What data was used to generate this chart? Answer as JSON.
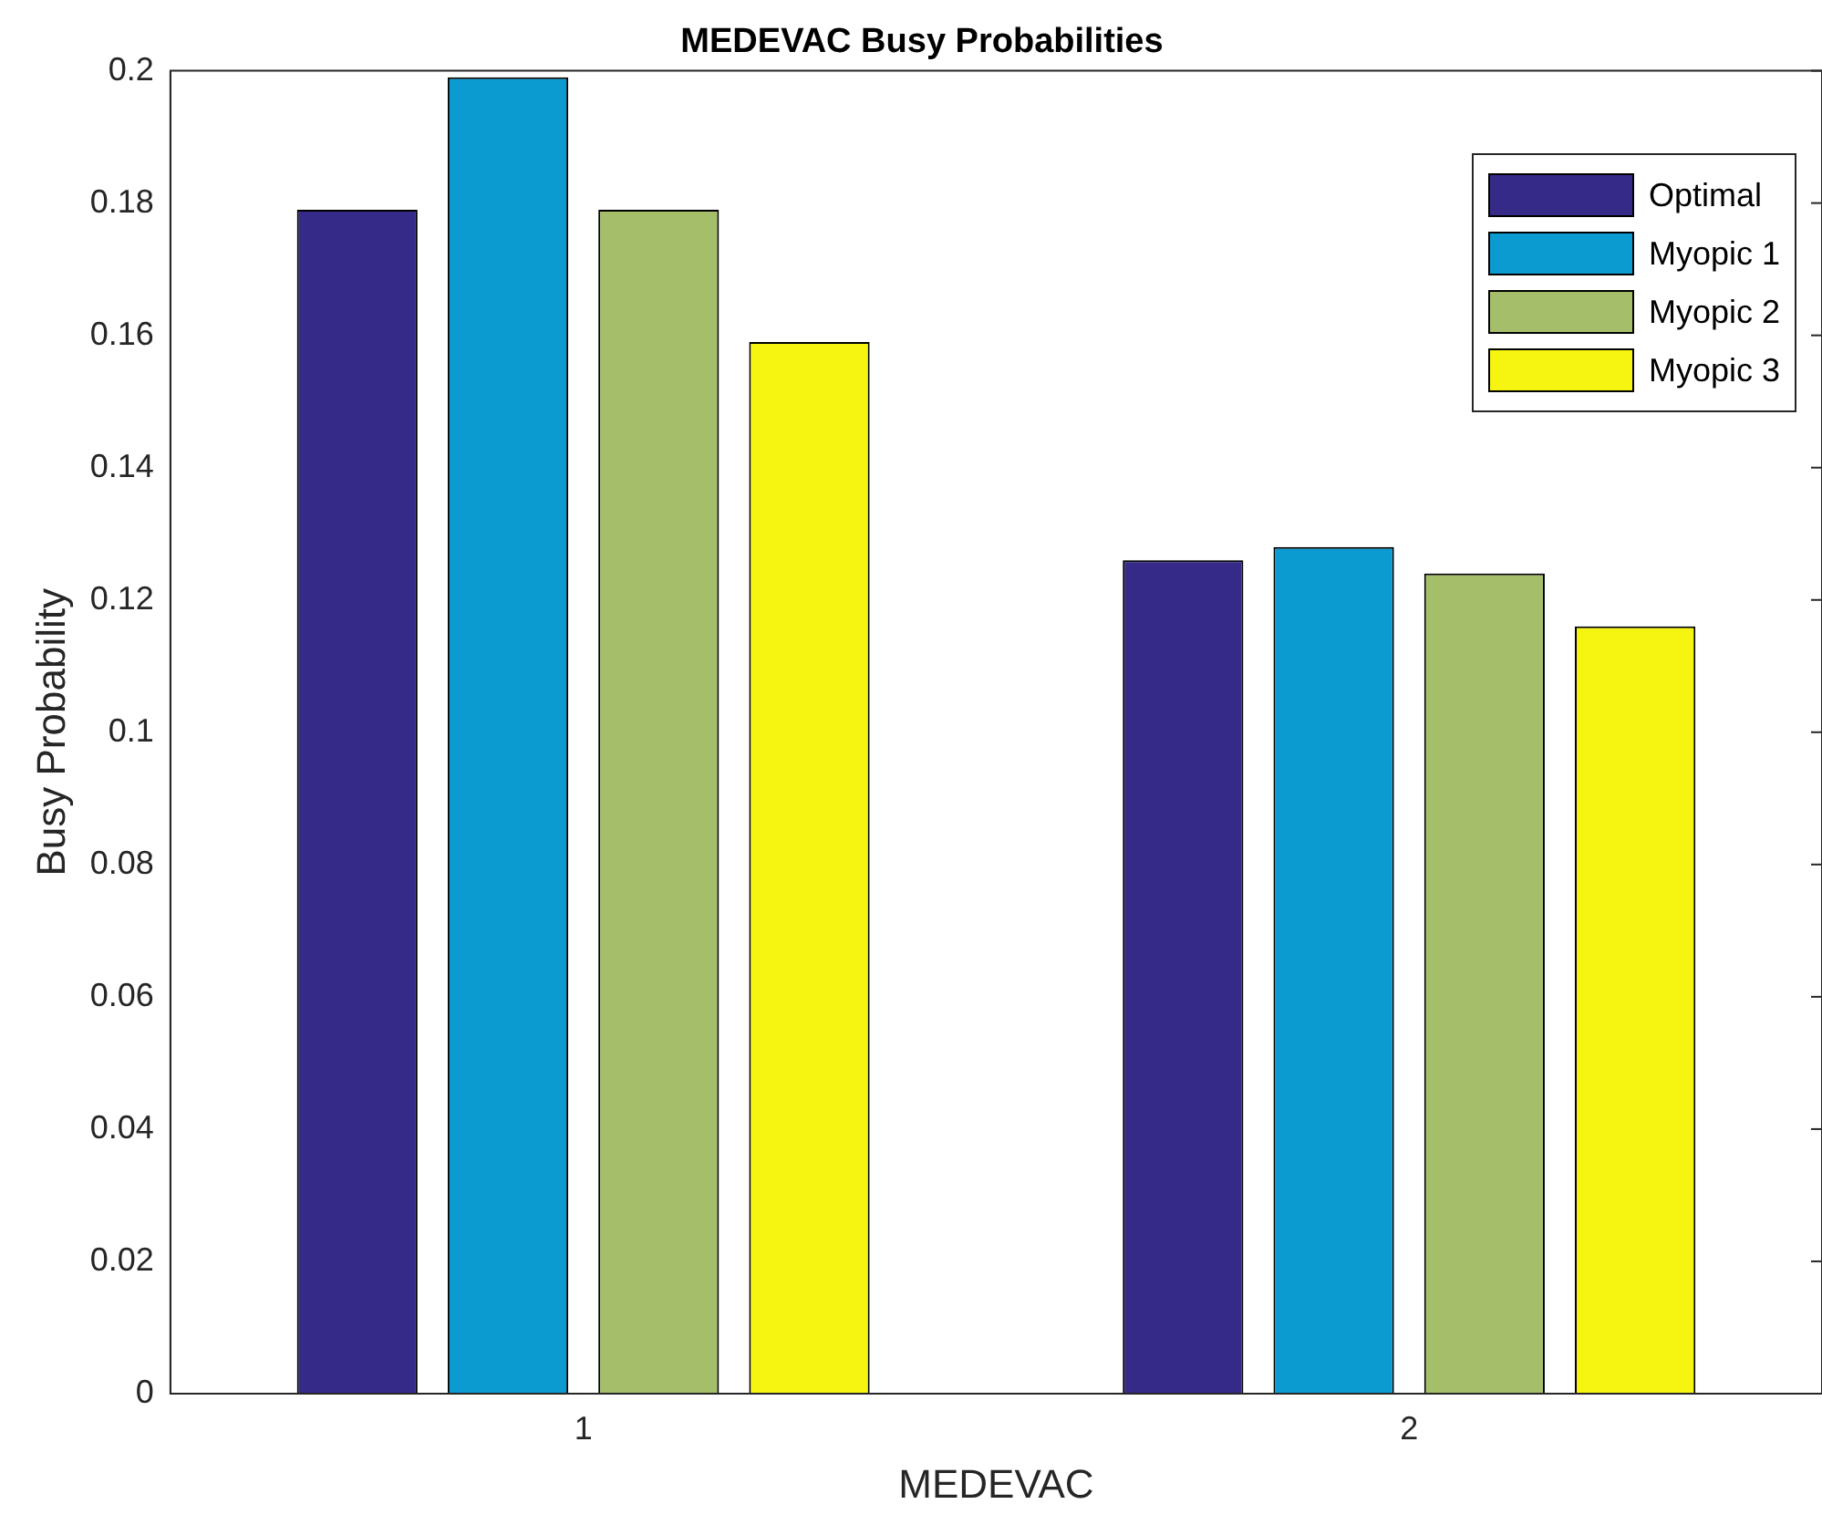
{
  "chart_data": {
    "type": "bar",
    "title": "MEDEVAC Busy Probabilities",
    "xlabel": "MEDEVAC",
    "ylabel": "Busy Probability",
    "categories": [
      "1",
      "2"
    ],
    "series": [
      {
        "name": "Optimal",
        "color": "#352a87",
        "values": [
          0.179,
          0.126
        ]
      },
      {
        "name": "Myopic 1",
        "color": "#0b9bd0",
        "values": [
          0.199,
          0.128
        ]
      },
      {
        "name": "Myopic 2",
        "color": "#a5be6a",
        "values": [
          0.179,
          0.124
        ]
      },
      {
        "name": "Myopic 3",
        "color": "#f5f511",
        "values": [
          0.159,
          0.116
        ]
      }
    ],
    "ylim": [
      0,
      0.2
    ],
    "yticks": [
      0,
      0.02,
      0.04,
      0.06,
      0.08,
      0.1,
      0.12,
      0.14,
      0.16,
      0.18,
      0.2
    ],
    "grid": false,
    "legend": "top right"
  }
}
